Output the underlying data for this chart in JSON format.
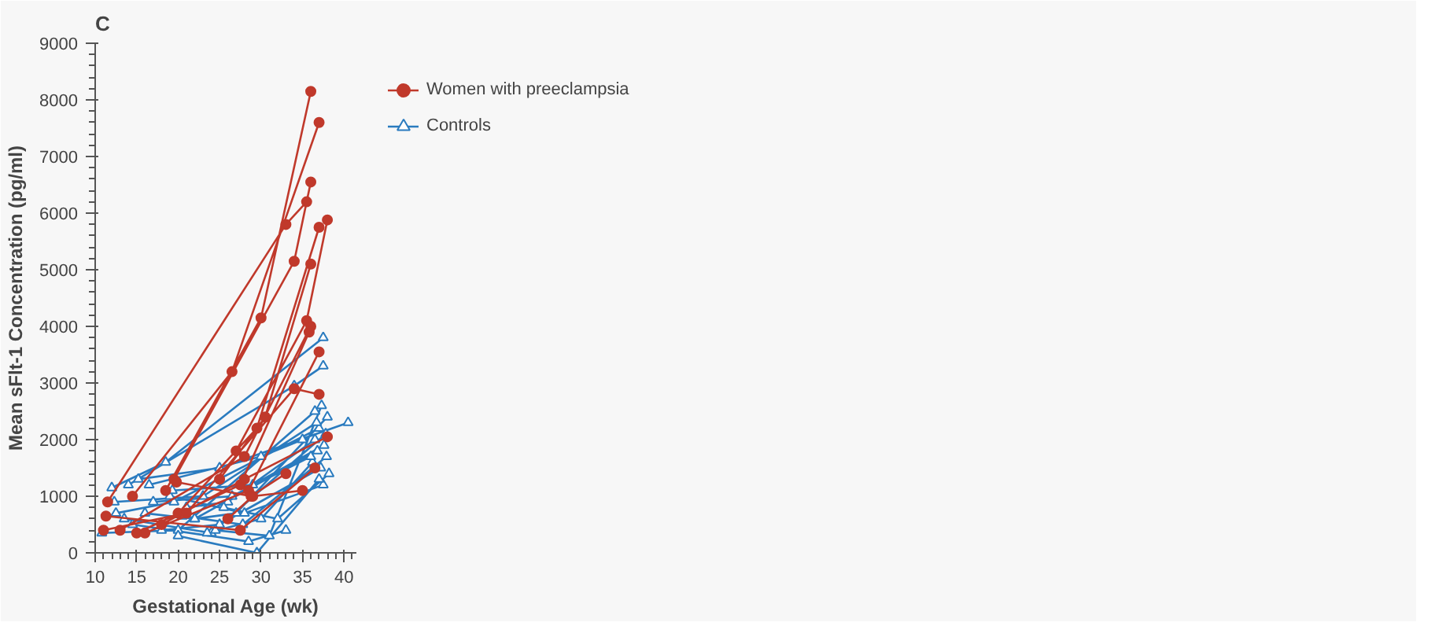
{
  "chart_data": {
    "type": "line",
    "title": "C",
    "xlabel": "Gestational Age (wk)",
    "ylabel": "Mean sFlt-1 Concentration (pg/ml)",
    "xlim": [
      10,
      41.5
    ],
    "ylim": [
      0,
      9000
    ],
    "xticks": [
      10,
      15,
      20,
      25,
      30,
      35,
      40
    ],
    "yticks": [
      0,
      1000,
      2000,
      3000,
      4000,
      5000,
      6000,
      7000,
      8000,
      9000
    ],
    "grid": false,
    "legend": "top right",
    "line_style": "solid",
    "series": [
      {
        "name": "Women with preeclampsia",
        "color": "#c0392b",
        "marker": "circle",
        "x": [
          11.5,
          33,
          35.5,
          null,
          14.5,
          26.5,
          37,
          null,
          18.5,
          30,
          36,
          null,
          19.5,
          34,
          36,
          null,
          20,
          29.5,
          37,
          null,
          25,
          30.5,
          36,
          null,
          27,
          35.5,
          38,
          null,
          13,
          28,
          36,
          null,
          15,
          27.5,
          35.8,
          null,
          16,
          28.5,
          37,
          null,
          11,
          21,
          34,
          37,
          null,
          18,
          28,
          38,
          null,
          26,
          29,
          35,
          null,
          11.3,
          27.5,
          36.5,
          null,
          19.8,
          28.8,
          33
        ],
        "values": [
          900,
          5800,
          6200,
          null,
          1000,
          3200,
          7600,
          null,
          1100,
          4150,
          8150,
          null,
          1300,
          5150,
          6550,
          null,
          700,
          2200,
          5750,
          null,
          1300,
          2400,
          5100,
          null,
          1800,
          4100,
          5880,
          null,
          400,
          1700,
          4000,
          null,
          350,
          1200,
          3900,
          null,
          350,
          1100,
          3550,
          null,
          400,
          700,
          2900,
          2800,
          null,
          500,
          1300,
          2050,
          null,
          600,
          1000,
          1100,
          null,
          650,
          400,
          1500,
          null,
          1250,
          1000,
          1400
        ]
      },
      {
        "name": "Controls",
        "color": "#2a7bbf",
        "marker": "triangle",
        "x": [
          12,
          18.5,
          37.5,
          null,
          14,
          34,
          37.5,
          null,
          15.2,
          25,
          40.5,
          null,
          10.8,
          20,
          36.5,
          null,
          12.5,
          19.5,
          37,
          null,
          13.5,
          24,
          37.8,
          null,
          16,
          22,
          36.8,
          null,
          18,
          25,
          37.2,
          null,
          19,
          28,
          37.5,
          null,
          20,
          29.5,
          37,
          null,
          21,
          26,
          36.5,
          null,
          22,
          27,
          38,
          null,
          23.5,
          30,
          36.2,
          null,
          24.5,
          31,
          37.3,
          null,
          17,
          26.5,
          36,
          null,
          14.5,
          28.5,
          33,
          null,
          19.3,
          29,
          37.6,
          null,
          25.5,
          32,
          38.2,
          null,
          16.5,
          30,
          35,
          null,
          12.3,
          23,
          36.7,
          null,
          20.5,
          27.8,
          37.9
        ],
        "values": [
          1150,
          1600,
          3800,
          null,
          1200,
          2950,
          3300,
          null,
          1300,
          1500,
          2300,
          null,
          350,
          400,
          2500,
          null,
          700,
          900,
          2200,
          null,
          600,
          350,
          2100,
          null,
          700,
          600,
          1800,
          null,
          400,
          500,
          1500,
          null,
          1000,
          700,
          1200,
          null,
          300,
          0,
          1300,
          null,
          800,
          900,
          2000,
          null,
          600,
          700,
          2400,
          null,
          350,
          600,
          1600,
          null,
          400,
          300,
          2600,
          null,
          900,
          1000,
          1700,
          null,
          500,
          200,
          400,
          null,
          1100,
          1200,
          1900,
          null,
          800,
          600,
          1400,
          null,
          1200,
          1700,
          2000,
          null,
          900,
          1000,
          2300,
          null,
          650,
          500,
          1700
        ]
      }
    ]
  }
}
